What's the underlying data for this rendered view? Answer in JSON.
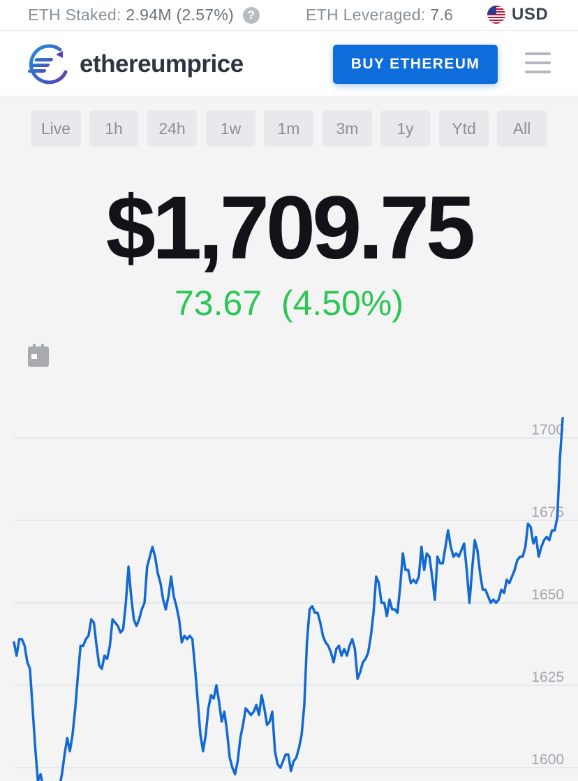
{
  "ticker": {
    "staked_label": "ETH Staked:",
    "staked_value": "2.94M (2.57%)",
    "leveraged_label": "ETH Leveraged:",
    "leveraged_value": "7.6",
    "help_icon": "question-circle-icon",
    "flag_icon": "us-flag-icon",
    "currency": "USD"
  },
  "header": {
    "logo_icon": "ethereumprice-logo-icon",
    "brand": "ethereumprice",
    "buy_label": "BUY ETHEREUM",
    "menu_icon": "hamburger-menu-icon"
  },
  "ranges": {
    "items": [
      "Live",
      "1h",
      "24h",
      "1w",
      "1m",
      "3m",
      "1y",
      "Ytd",
      "All"
    ],
    "active": "24h"
  },
  "price": {
    "value": "$1,709.75",
    "change": "73.67",
    "change_pct": "(4.50%)",
    "change_color": "#2bc653"
  },
  "calendar_icon": "calendar-icon",
  "chart_data": {
    "type": "line",
    "y_ticks": [
      "1700",
      "1675",
      "1650",
      "1625",
      "1600"
    ],
    "ylim": [
      1596,
      1707
    ],
    "grid": true,
    "line_color": "#1269d3",
    "series": [
      {
        "values": [
          1638,
          1634,
          1639,
          1639,
          1637,
          1632,
          1630,
          1618,
          1606,
          1596,
          1598,
          1594,
          1590,
          1586,
          1588,
          1585,
          1590,
          1594,
          1598,
          1604,
          1609,
          1605,
          1610,
          1618,
          1628,
          1637,
          1637,
          1639,
          1640,
          1645,
          1644,
          1637,
          1631,
          1630,
          1634,
          1633,
          1637,
          1645,
          1644,
          1643,
          1641,
          1642,
          1650,
          1661,
          1652,
          1645,
          1643,
          1645,
          1648,
          1650,
          1661,
          1664,
          1667,
          1664,
          1659,
          1656,
          1651,
          1648,
          1652,
          1658,
          1652,
          1649,
          1645,
          1638,
          1640,
          1639,
          1640,
          1639,
          1630,
          1620,
          1610,
          1605,
          1610,
          1618,
          1622,
          1621,
          1625,
          1620,
          1614,
          1617,
          1611,
          1603,
          1600,
          1598,
          1602,
          1609,
          1613,
          1618,
          1617,
          1616,
          1617,
          1619,
          1616,
          1622,
          1618,
          1613,
          1614,
          1617,
          1605,
          1601,
          1600,
          1602,
          1604,
          1604,
          1599,
          1602,
          1603,
          1606,
          1610,
          1619,
          1638,
          1648,
          1649,
          1647,
          1647,
          1644,
          1640,
          1638,
          1637,
          1635,
          1632,
          1636,
          1637,
          1634,
          1636,
          1634,
          1637,
          1639,
          1636,
          1627,
          1629,
          1632,
          1633,
          1635,
          1640,
          1647,
          1658,
          1656,
          1650,
          1650,
          1646,
          1651,
          1648,
          1648,
          1647,
          1655,
          1665,
          1660,
          1660,
          1656,
          1657,
          1656,
          1658,
          1667,
          1660,
          1665,
          1664,
          1658,
          1651,
          1664,
          1662,
          1662,
          1667,
          1672,
          1667,
          1664,
          1665,
          1664,
          1666,
          1668,
          1660,
          1650,
          1660,
          1669,
          1666,
          1659,
          1654,
          1654,
          1652,
          1650,
          1651,
          1650,
          1651,
          1654,
          1653,
          1657,
          1656,
          1658,
          1660,
          1663,
          1664,
          1664,
          1667,
          1674,
          1673,
          1668,
          1670,
          1664,
          1667,
          1669,
          1670,
          1669,
          1672,
          1672,
          1676,
          1694,
          1706
        ]
      }
    ]
  }
}
